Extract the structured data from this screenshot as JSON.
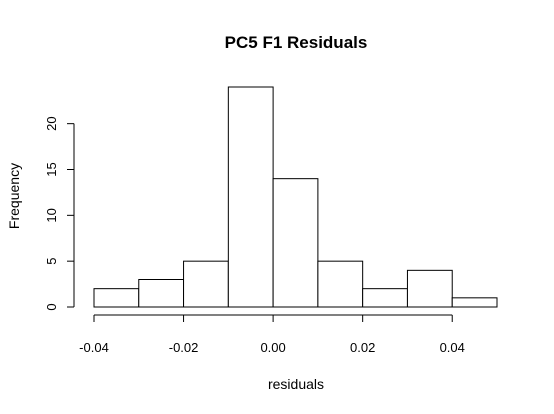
{
  "chart_data": {
    "type": "bar",
    "title": "PC5 F1 Residuals",
    "xlabel": "residuals",
    "ylabel": "Frequency",
    "bins": [
      {
        "from": -0.04,
        "to": -0.03,
        "count": 2
      },
      {
        "from": -0.03,
        "to": -0.02,
        "count": 3
      },
      {
        "from": -0.02,
        "to": -0.01,
        "count": 5
      },
      {
        "from": -0.01,
        "to": 0.0,
        "count": 24
      },
      {
        "from": 0.0,
        "to": 0.01,
        "count": 14
      },
      {
        "from": 0.01,
        "to": 0.02,
        "count": 5
      },
      {
        "from": 0.02,
        "to": 0.03,
        "count": 2
      },
      {
        "from": 0.03,
        "to": 0.04,
        "count": 4
      },
      {
        "from": 0.04,
        "to": 0.05,
        "count": 1
      }
    ],
    "xlim": [
      -0.04,
      0.05
    ],
    "ylim": [
      0,
      24
    ],
    "x_ticks": [
      -0.04,
      -0.02,
      0.0,
      0.02,
      0.04
    ],
    "x_tick_labels": [
      "-0.04",
      "-0.02",
      "0.00",
      "0.02",
      "0.04"
    ],
    "y_ticks": [
      0,
      5,
      10,
      15,
      20
    ],
    "y_tick_labels": [
      "0",
      "5",
      "10",
      "15",
      "20"
    ],
    "grid": false,
    "legend": "none"
  }
}
